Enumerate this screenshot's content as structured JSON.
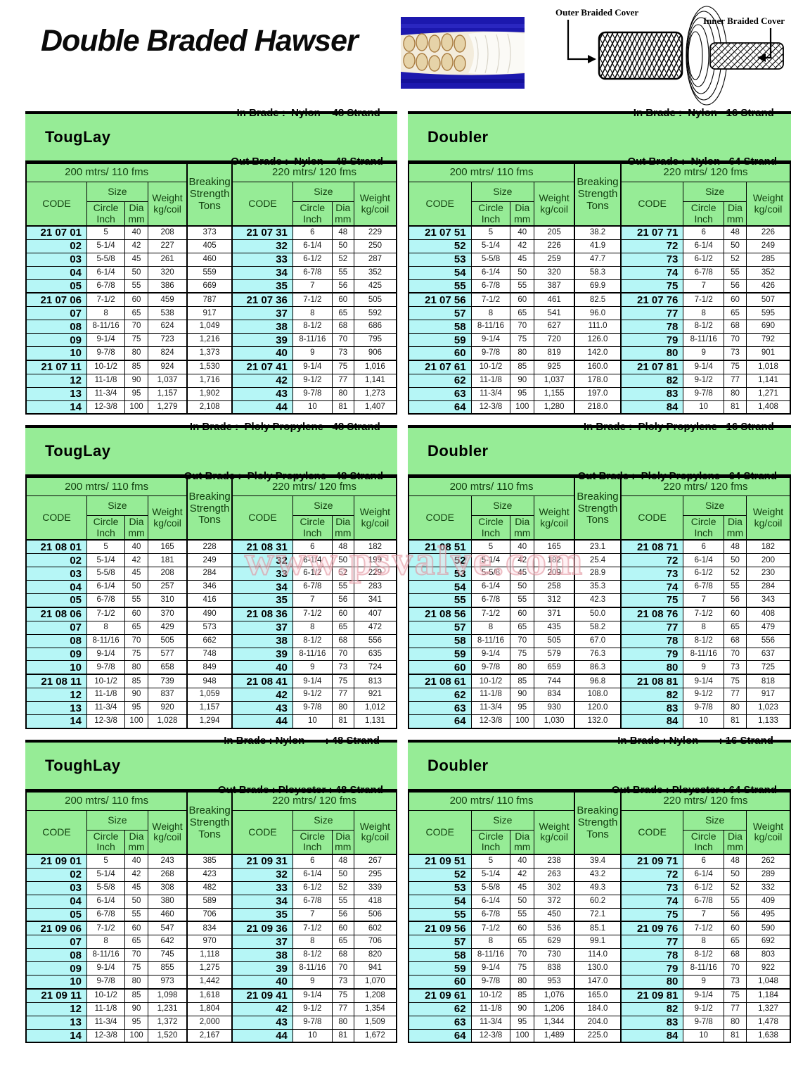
{
  "page": {
    "title": "Double Braded Hawser"
  },
  "diagram": {
    "outer_label": "Outer Braided Cover",
    "inner_label": "Inner Braided Cover"
  },
  "watermark": "www.psvalve.com",
  "shared": {
    "grp200": "200 mtrs/ 110 fms",
    "grp220": "220 mtrs/ 120 fms",
    "code": "CODE",
    "size": "Size",
    "circle": "Circle Inch",
    "dia": "Dia mm",
    "weight": "Weight kg/coil",
    "breaking": "Breaking Strength Tons"
  },
  "tables": [
    {
      "title": "TougLay",
      "in_brade": "  In Brade :  Nylon    48 Strand",
      "out_brade": "Out Brade :  Nylon    48 Strand",
      "rows": [
        [
          "21 07 01",
          "5",
          "40",
          "208",
          "373",
          "21 07 31",
          "6",
          "48",
          "229"
        ],
        [
          "02",
          "5-1/4",
          "42",
          "227",
          "405",
          "32",
          "6-1/4",
          "50",
          "250"
        ],
        [
          "03",
          "5-5/8",
          "45",
          "261",
          "460",
          "33",
          "6-1/2",
          "52",
          "287"
        ],
        [
          "04",
          "6-1/4",
          "50",
          "320",
          "559",
          "34",
          "6-7/8",
          "55",
          "352"
        ],
        [
          "05",
          "6-7/8",
          "55",
          "386",
          "669",
          "35",
          "7",
          "56",
          "425"
        ],
        [
          "21 07 06",
          "7-1/2",
          "60",
          "459",
          "787",
          "21 07 36",
          "7-1/2",
          "60",
          "505"
        ],
        [
          "07",
          "8",
          "65",
          "538",
          "917",
          "37",
          "8",
          "65",
          "592"
        ],
        [
          "08",
          "8-11/16",
          "70",
          "624",
          "1,049",
          "38",
          "8-1/2",
          "68",
          "686"
        ],
        [
          "09",
          "9-1/4",
          "75",
          "723",
          "1,216",
          "39",
          "8-11/16",
          "70",
          "795"
        ],
        [
          "10",
          "9-7/8",
          "80",
          "824",
          "1,373",
          "40",
          "9",
          "73",
          "906"
        ],
        [
          "21 07 11",
          "10-1/2",
          "85",
          "924",
          "1,530",
          "21 07 41",
          "9-1/4",
          "75",
          "1,016"
        ],
        [
          "12",
          "11-1/8",
          "90",
          "1,037",
          "1,716",
          "42",
          "9-1/2",
          "77",
          "1,141"
        ],
        [
          "13",
          "11-3/4",
          "95",
          "1,157",
          "1,902",
          "43",
          "9-7/8",
          "80",
          "1,273"
        ],
        [
          "14",
          "12-3/8",
          "100",
          "1,279",
          "2,108",
          "44",
          "10",
          "81",
          "1,407"
        ]
      ]
    },
    {
      "title": "Doubler",
      "in_brade": "  In Brade :  Nylon   16 Strand",
      "out_brade": "Out Brade :  Nylon   64 Strand",
      "rows": [
        [
          "21 07 51",
          "5",
          "40",
          "205",
          "38.2",
          "21 07 71",
          "6",
          "48",
          "226"
        ],
        [
          "52",
          "5-1/4",
          "42",
          "226",
          "41.9",
          "72",
          "6-1/4",
          "50",
          "249"
        ],
        [
          "53",
          "5-5/8",
          "45",
          "259",
          "47.7",
          "73",
          "6-1/2",
          "52",
          "285"
        ],
        [
          "54",
          "6-1/4",
          "50",
          "320",
          "58.3",
          "74",
          "6-7/8",
          "55",
          "352"
        ],
        [
          "55",
          "6-7/8",
          "55",
          "387",
          "69.9",
          "75",
          "7",
          "56",
          "426"
        ],
        [
          "21 07 56",
          "7-1/2",
          "60",
          "461",
          "82.5",
          "21 07 76",
          "7-1/2",
          "60",
          "507"
        ],
        [
          "57",
          "8",
          "65",
          "541",
          "96.0",
          "77",
          "8",
          "65",
          "595"
        ],
        [
          "58",
          "8-11/16",
          "70",
          "627",
          "111.0",
          "78",
          "8-1/2",
          "68",
          "690"
        ],
        [
          "59",
          "9-1/4",
          "75",
          "720",
          "126.0",
          "79",
          "8-11/16",
          "70",
          "792"
        ],
        [
          "60",
          "9-7/8",
          "80",
          "819",
          "142.0",
          "80",
          "9",
          "73",
          "901"
        ],
        [
          "21 07 61",
          "10-1/2",
          "85",
          "925",
          "160.0",
          "21 07 81",
          "9-1/4",
          "75",
          "1,018"
        ],
        [
          "62",
          "11-1/8",
          "90",
          "1,037",
          "178.0",
          "82",
          "9-1/2",
          "77",
          "1,141"
        ],
        [
          "63",
          "11-3/4",
          "95",
          "1,155",
          "197.0",
          "83",
          "9-7/8",
          "80",
          "1,271"
        ],
        [
          "64",
          "12-3/8",
          "100",
          "1,280",
          "218.0",
          "84",
          "10",
          "81",
          "1,408"
        ]
      ]
    },
    {
      "title": "TougLay",
      "in_brade": "  In Brade :  Ploly Propylene   48 Strand",
      "out_brade": "Out Brade :  Ploly Propylene   48 Strand",
      "rows": [
        [
          "21 08 01",
          "5",
          "40",
          "165",
          "228",
          "21 08 31",
          "6",
          "48",
          "182"
        ],
        [
          "02",
          "5-1/4",
          "42",
          "181",
          "249",
          "32",
          "6-1/4",
          "50",
          "199"
        ],
        [
          "03",
          "5-5/8",
          "45",
          "208",
          "284",
          "33",
          "6-1/2",
          "52",
          "229"
        ],
        [
          "04",
          "6-1/4",
          "50",
          "257",
          "346",
          "34",
          "6-7/8",
          "55",
          "283"
        ],
        [
          "05",
          "6-7/8",
          "55",
          "310",
          "416",
          "35",
          "7",
          "56",
          "341"
        ],
        [
          "21 08 06",
          "7-1/2",
          "60",
          "370",
          "490",
          "21 08 36",
          "7-1/2",
          "60",
          "407"
        ],
        [
          "07",
          "8",
          "65",
          "429",
          "573",
          "37",
          "8",
          "65",
          "472"
        ],
        [
          "08",
          "8-11/16",
          "70",
          "505",
          "662",
          "38",
          "8-1/2",
          "68",
          "556"
        ],
        [
          "09",
          "9-1/4",
          "75",
          "577",
          "748",
          "39",
          "8-11/16",
          "70",
          "635"
        ],
        [
          "10",
          "9-7/8",
          "80",
          "658",
          "849",
          "40",
          "9",
          "73",
          "724"
        ],
        [
          "21 08 11",
          "10-1/2",
          "85",
          "739",
          "948",
          "21 08 41",
          "9-1/4",
          "75",
          "813"
        ],
        [
          "12",
          "11-1/8",
          "90",
          "837",
          "1,059",
          "42",
          "9-1/2",
          "77",
          "921"
        ],
        [
          "13",
          "11-3/4",
          "95",
          "920",
          "1,157",
          "43",
          "9-7/8",
          "80",
          "1,012"
        ],
        [
          "14",
          "12-3/8",
          "100",
          "1,028",
          "1,294",
          "44",
          "10",
          "81",
          "1,131"
        ]
      ]
    },
    {
      "title": "Doubler",
      "in_brade": "  In Brade :  Ploly Propylene   16 Strand",
      "out_brade": "Out Brade :  Ploly Propylene   64 Strand",
      "rows": [
        [
          "21 08 51",
          "5",
          "40",
          "165",
          "23.1",
          "21 08 71",
          "6",
          "48",
          "182"
        ],
        [
          "52",
          "5-1/4",
          "42",
          "182",
          "25.4",
          "72",
          "6-1/4",
          "50",
          "200"
        ],
        [
          "53",
          "5-5/8",
          "45",
          "209",
          "28.9",
          "73",
          "6-1/2",
          "52",
          "230"
        ],
        [
          "54",
          "6-1/4",
          "50",
          "258",
          "35.3",
          "74",
          "6-7/8",
          "55",
          "284"
        ],
        [
          "55",
          "6-7/8",
          "55",
          "312",
          "42.3",
          "75",
          "7",
          "56",
          "343"
        ],
        [
          "21 08 56",
          "7-1/2",
          "60",
          "371",
          "50.0",
          "21 08 76",
          "7-1/2",
          "60",
          "408"
        ],
        [
          "57",
          "8",
          "65",
          "435",
          "58.2",
          "77",
          "8",
          "65",
          "479"
        ],
        [
          "58",
          "8-11/16",
          "70",
          "505",
          "67.0",
          "78",
          "8-1/2",
          "68",
          "556"
        ],
        [
          "59",
          "9-1/4",
          "75",
          "579",
          "76.3",
          "79",
          "8-11/16",
          "70",
          "637"
        ],
        [
          "60",
          "9-7/8",
          "80",
          "659",
          "86.3",
          "80",
          "9",
          "73",
          "725"
        ],
        [
          "21 08 61",
          "10-1/2",
          "85",
          "744",
          "96.8",
          "21 08 81",
          "9-1/4",
          "75",
          "818"
        ],
        [
          "62",
          "11-1/8",
          "90",
          "834",
          "108.0",
          "82",
          "9-1/2",
          "77",
          "917"
        ],
        [
          "63",
          "11-3/4",
          "95",
          "930",
          "120.0",
          "83",
          "9-7/8",
          "80",
          "1,023"
        ],
        [
          "64",
          "12-3/8",
          "100",
          "1,030",
          "132.0",
          "84",
          "10",
          "81",
          "1,133"
        ]
      ]
    },
    {
      "title": "ToughLay",
      "in_brade": "  In Brade : Nylon       : 48 Strand",
      "out_brade": "Out Brade : Ployester : 48 Strand",
      "rows": [
        [
          "21 09 01",
          "5",
          "40",
          "243",
          "385",
          "21 09 31",
          "6",
          "48",
          "267"
        ],
        [
          "02",
          "5-1/4",
          "42",
          "268",
          "423",
          "32",
          "6-1/4",
          "50",
          "295"
        ],
        [
          "03",
          "5-5/8",
          "45",
          "308",
          "482",
          "33",
          "6-1/2",
          "52",
          "339"
        ],
        [
          "04",
          "6-1/4",
          "50",
          "380",
          "589",
          "34",
          "6-7/8",
          "55",
          "418"
        ],
        [
          "05",
          "6-7/8",
          "55",
          "460",
          "706",
          "35",
          "7",
          "56",
          "506"
        ],
        [
          "21 09 06",
          "7-1/2",
          "60",
          "547",
          "834",
          "21 09 36",
          "7-1/2",
          "60",
          "602"
        ],
        [
          "07",
          "8",
          "65",
          "642",
          "970",
          "37",
          "8",
          "65",
          "706"
        ],
        [
          "08",
          "8-11/16",
          "70",
          "745",
          "1,118",
          "38",
          "8-1/2",
          "68",
          "820"
        ],
        [
          "09",
          "9-1/4",
          "75",
          "855",
          "1,275",
          "39",
          "8-11/16",
          "70",
          "941"
        ],
        [
          "10",
          "9-7/8",
          "80",
          "973",
          "1,442",
          "40",
          "9",
          "73",
          "1,070"
        ],
        [
          "21 09 11",
          "10-1/2",
          "85",
          "1,098",
          "1,618",
          "21 09 41",
          "9-1/4",
          "75",
          "1,208"
        ],
        [
          "12",
          "11-1/8",
          "90",
          "1,231",
          "1,804",
          "42",
          "9-1/2",
          "77",
          "1,354"
        ],
        [
          "13",
          "11-3/4",
          "95",
          "1,372",
          "2,000",
          "43",
          "9-7/8",
          "80",
          "1,509"
        ],
        [
          "14",
          "12-3/8",
          "100",
          "1,520",
          "2,167",
          "44",
          "10",
          "81",
          "1,672"
        ]
      ]
    },
    {
      "title": "Doubler",
      "in_brade": "  In Brade : Nylon       : 16 Strand",
      "out_brade": "Out Brade : Ployester : 64 Strand",
      "rows": [
        [
          "21 09 51",
          "5",
          "40",
          "238",
          "39.4",
          "21 09 71",
          "6",
          "48",
          "262"
        ],
        [
          "52",
          "5-1/4",
          "42",
          "263",
          "43.2",
          "72",
          "6-1/4",
          "50",
          "289"
        ],
        [
          "53",
          "5-5/8",
          "45",
          "302",
          "49.3",
          "73",
          "6-1/2",
          "52",
          "332"
        ],
        [
          "54",
          "6-1/4",
          "50",
          "372",
          "60.2",
          "74",
          "6-7/8",
          "55",
          "409"
        ],
        [
          "55",
          "6-7/8",
          "55",
          "450",
          "72.1",
          "75",
          "7",
          "56",
          "495"
        ],
        [
          "21 09 56",
          "7-1/2",
          "60",
          "536",
          "85.1",
          "21 09 76",
          "7-1/2",
          "60",
          "590"
        ],
        [
          "57",
          "8",
          "65",
          "629",
          "99.1",
          "77",
          "8",
          "65",
          "692"
        ],
        [
          "58",
          "8-11/16",
          "70",
          "730",
          "114.0",
          "78",
          "8-1/2",
          "68",
          "803"
        ],
        [
          "59",
          "9-1/4",
          "75",
          "838",
          "130.0",
          "79",
          "8-11/16",
          "70",
          "922"
        ],
        [
          "60",
          "9-7/8",
          "80",
          "953",
          "147.0",
          "80",
          "9",
          "73",
          "1,048"
        ],
        [
          "21 09 61",
          "10-1/2",
          "85",
          "1,076",
          "165.0",
          "21 09 81",
          "9-1/4",
          "75",
          "1,184"
        ],
        [
          "62",
          "11-1/8",
          "90",
          "1,206",
          "184.0",
          "82",
          "9-1/2",
          "77",
          "1,327"
        ],
        [
          "63",
          "11-3/4",
          "95",
          "1,344",
          "204.0",
          "83",
          "9-7/8",
          "80",
          "1,478"
        ],
        [
          "64",
          "12-3/8",
          "100",
          "1,489",
          "225.0",
          "84",
          "10",
          "81",
          "1,638"
        ]
      ]
    }
  ]
}
